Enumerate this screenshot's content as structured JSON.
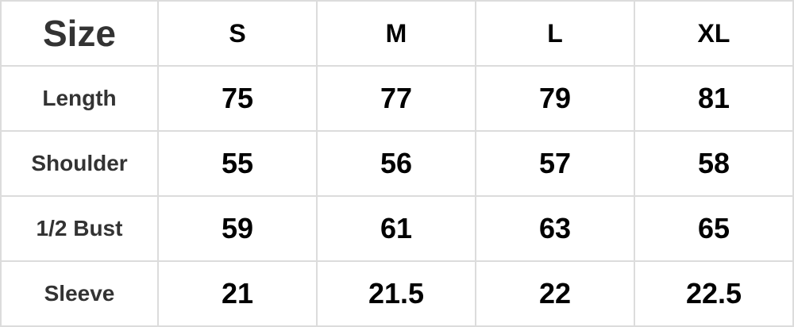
{
  "table": {
    "title": "Size",
    "sizes": [
      "S",
      "M",
      "L",
      "XL"
    ],
    "rows": [
      {
        "label": "Length",
        "values": [
          "75",
          "77",
          "79",
          "81"
        ]
      },
      {
        "label": "Shoulder",
        "values": [
          "55",
          "56",
          "57",
          "58"
        ]
      },
      {
        "label": "1/2 Bust",
        "values": [
          "59",
          "61",
          "63",
          "65"
        ]
      },
      {
        "label": "Sleeve",
        "values": [
          "21",
          "21.5",
          "22",
          "22.5"
        ]
      }
    ]
  }
}
